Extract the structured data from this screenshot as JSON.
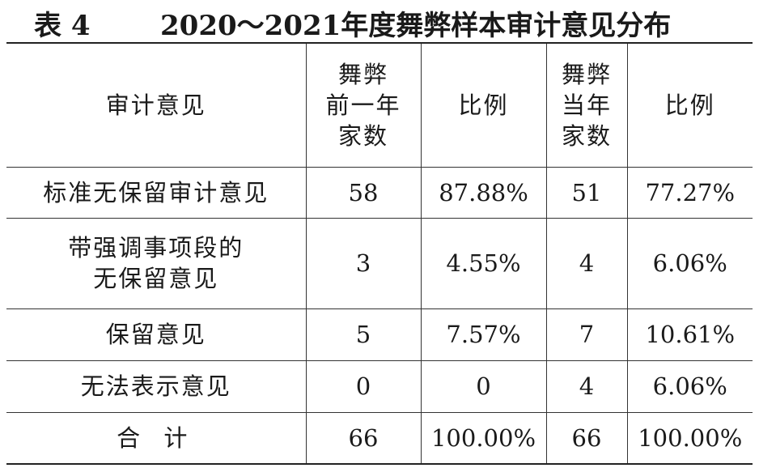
{
  "title": {
    "label": "表 4",
    "text": "2020～2021年度舞弊样本审计意见分布"
  },
  "table": {
    "headers": {
      "opinion": "审计意见",
      "prev_count": [
        "舞弊",
        "前一年",
        "家数"
      ],
      "prev_ratio": "比例",
      "curr_count": [
        "舞弊",
        "当年",
        "家数"
      ],
      "curr_ratio": "比例"
    },
    "rows": [
      {
        "opinion": [
          "标准无保留审计意见"
        ],
        "prev_count": "58",
        "prev_ratio": "87.88%",
        "curr_count": "51",
        "curr_ratio": "77.27%"
      },
      {
        "opinion": [
          "带强调事项段的",
          "无保留意见"
        ],
        "prev_count": "3",
        "prev_ratio": "4.55%",
        "curr_count": "4",
        "curr_ratio": "6.06%"
      },
      {
        "opinion": [
          "保留意见"
        ],
        "prev_count": "5",
        "prev_ratio": "7.57%",
        "curr_count": "7",
        "curr_ratio": "10.61%"
      },
      {
        "opinion": [
          "无法表示意见"
        ],
        "prev_count": "0",
        "prev_ratio": "0",
        "curr_count": "4",
        "curr_ratio": "6.06%"
      },
      {
        "opinion": [
          "合 计"
        ],
        "prev_count": "66",
        "prev_ratio": "100.00%",
        "curr_count": "66",
        "curr_ratio": "100.00%"
      }
    ]
  }
}
